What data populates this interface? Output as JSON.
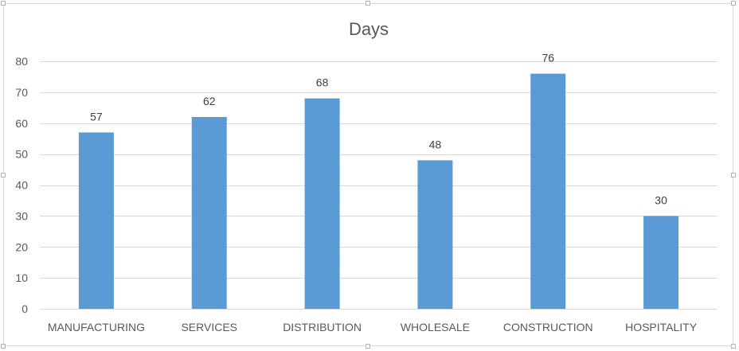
{
  "chart_data": {
    "type": "bar",
    "title": "Days",
    "categories": [
      "MANUFACTURING",
      "SERVICES",
      "DISTRIBUTION",
      "WHOLESALE",
      "CONSTRUCTION",
      "HOSPITALITY"
    ],
    "values": [
      57,
      62,
      68,
      48,
      76,
      30
    ],
    "data_labels": [
      "57",
      "62",
      "68",
      "48",
      "76",
      "30"
    ],
    "y_ticks": [
      0,
      10,
      20,
      30,
      40,
      50,
      60,
      70,
      80
    ],
    "ylim": [
      0,
      80
    ],
    "grid": true,
    "legend": "none",
    "bar_color": "#5b9bd5"
  }
}
